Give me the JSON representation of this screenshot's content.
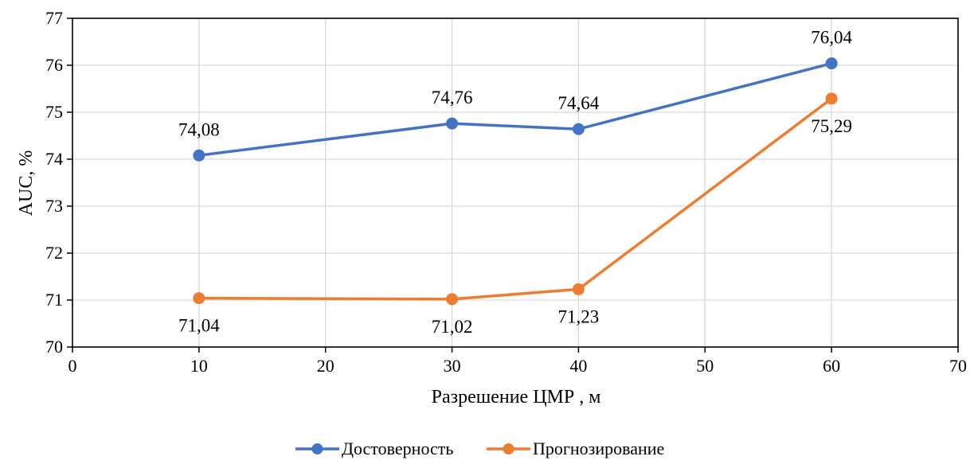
{
  "chart_data": {
    "type": "line",
    "title": "",
    "xlabel": "Разрешение ЦМР , м",
    "ylabel": "AUC, %",
    "xlim": [
      0,
      70
    ],
    "ylim": [
      70,
      77
    ],
    "x_ticks": [
      0,
      10,
      20,
      30,
      40,
      50,
      60,
      70
    ],
    "y_ticks": [
      70,
      71,
      72,
      73,
      74,
      75,
      76,
      77
    ],
    "x_tick_labels": [
      "0",
      "10",
      "20",
      "30",
      "40",
      "50",
      "60",
      "70"
    ],
    "y_tick_labels": [
      "70",
      "71",
      "72",
      "73",
      "74",
      "75",
      "76",
      "77"
    ],
    "grid": true,
    "legend_position": "bottom",
    "x": [
      10,
      30,
      40,
      60
    ],
    "series": [
      {
        "name": "Достоверность",
        "color": "#4472C4",
        "values": [
          74.08,
          74.76,
          74.64,
          76.04
        ],
        "labels": [
          "74,08",
          "74,76",
          "74,64",
          "76,04"
        ],
        "label_position": "above"
      },
      {
        "name": "Прогнозирование",
        "color": "#ED7D31",
        "values": [
          71.04,
          71.02,
          71.23,
          75.29
        ],
        "labels": [
          "71,04",
          "71,02",
          "71,23",
          "75,29"
        ],
        "label_position": "below"
      }
    ]
  }
}
